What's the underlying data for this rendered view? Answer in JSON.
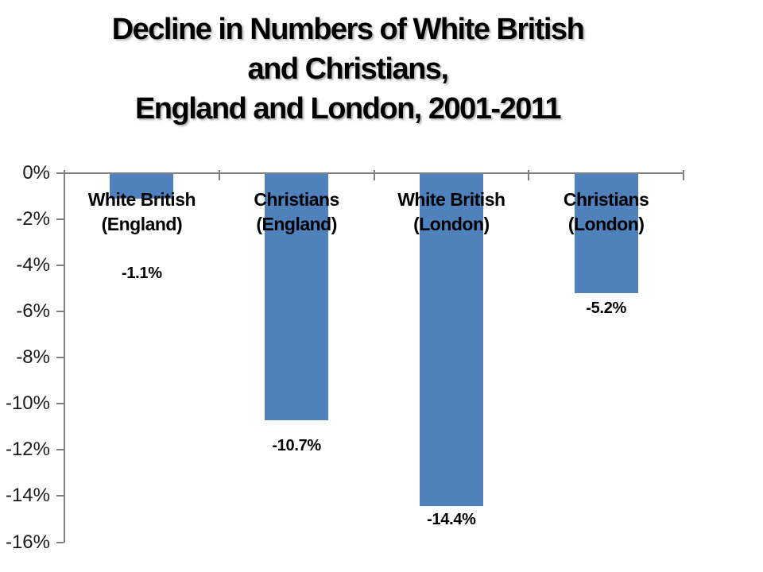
{
  "title": {
    "lines": [
      "Decline in Numbers of White British",
      "and Christians,",
      "England and London, 2001-2011"
    ]
  },
  "chart_data": {
    "type": "bar",
    "title": "Decline in Numbers of White British and Christians, England and London, 2001-2011",
    "categories": [
      "White British (England)",
      "Christians (England)",
      "White British (London)",
      "Christians (London)"
    ],
    "category_lines": [
      [
        "White British",
        "(England)"
      ],
      [
        "Christians",
        "(England)"
      ],
      [
        "White British",
        "(London)"
      ],
      [
        "Christians",
        "(London)"
      ]
    ],
    "values": [
      -1.1,
      -10.7,
      -14.4,
      -5.2
    ],
    "data_labels": [
      "-1.1%",
      "-10.7%",
      "-14.4%",
      "-5.2%"
    ],
    "unit": "%",
    "xlabel": "",
    "ylabel": "",
    "ylim": [
      -16,
      0
    ],
    "ytick_step": 2,
    "ytick_labels": [
      "0%",
      "-2%",
      "-4%",
      "-6%",
      "-8%",
      "-10%",
      "-12%",
      "-14%",
      "-16%"
    ],
    "grid": false,
    "legend": false,
    "colors": {
      "bar": "#4f81bd",
      "axis": "#808080",
      "text": "#000000",
      "background": "#ffffff"
    }
  }
}
